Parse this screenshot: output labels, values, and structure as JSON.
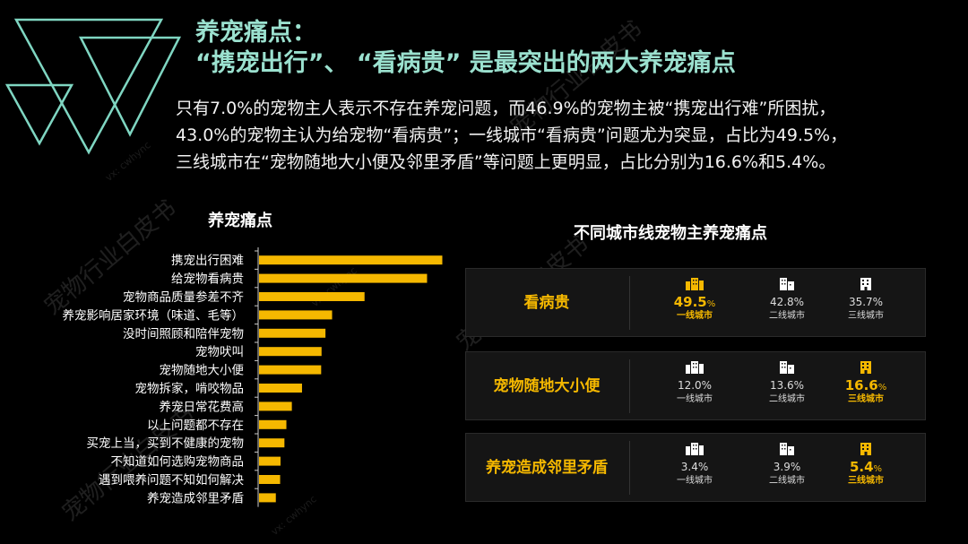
{
  "title": {
    "line1": "养宠痛点：",
    "line2": "“携宠出行”、 “看病贵” 是最突出的两大养宠痛点"
  },
  "intro": [
    "只有7.0%的宠物主人表示不存在养宠问题，而46.9%的宠物主被“携宠出行难”所困扰，",
    "43.0%的宠物主认为给宠物“看病贵”；一线城市“看病贵”问题尤为突显，占比为49.5%，",
    "三线城市在“宠物随地大小便及邻里矛盾”等问题上更明显，占比分别为16.6%和5.4%。"
  ],
  "watermark": {
    "text": "宠物行业白皮书",
    "sub": "vx: cwhync"
  },
  "colors": {
    "accent": "#f5b800",
    "title": "#9be1cf",
    "logo": "#7fd6c2"
  },
  "chart_data": [
    {
      "type": "bar",
      "orientation": "horizontal",
      "title": "养宠痛点",
      "categories": [
        "携宠出行困难",
        "给宠物看病贵",
        "宠物商品质量参差不齐",
        "养宠影响居家环境（味道、毛等）",
        "没时间照顾和陪伴宠物",
        "宠物吠叫",
        "宠物随地大小便",
        "宠物拆家，啃咬物品",
        "养宠日常花费高",
        "以上问题都不存在",
        "买宠上当，买到不健康的宠物",
        "不知道如何选购宠物商品",
        "遇到喂养问题不知如何解决",
        "养宠造成邻里矛盾"
      ],
      "values": [
        46.9,
        43.0,
        27.0,
        18.7,
        17.0,
        16.0,
        15.9,
        11.0,
        8.4,
        7.0,
        6.5,
        5.5,
        5.4,
        4.3
      ],
      "xlim": [
        0,
        50
      ],
      "legend": "none",
      "grid": false
    },
    {
      "type": "table",
      "title": "不同城市线宠物主养宠痛点",
      "rows": [
        {
          "label_lines": [
            "看病贵"
          ],
          "cells": [
            {
              "value": "49.5",
              "unit": "%",
              "city": "一线城市",
              "highlight": true
            },
            {
              "value": "42.8%",
              "unit": "",
              "city": "二线城市",
              "highlight": false
            },
            {
              "value": "35.7%",
              "unit": "",
              "city": "三线城市",
              "highlight": false
            }
          ]
        },
        {
          "label_lines": [
            "宠物",
            "随地大小便"
          ],
          "cells": [
            {
              "value": "12.0%",
              "unit": "",
              "city": "一线城市",
              "highlight": false
            },
            {
              "value": "13.6%",
              "unit": "",
              "city": "二线城市",
              "highlight": false
            },
            {
              "value": "16.6",
              "unit": "%",
              "city": "三线城市",
              "highlight": true
            }
          ]
        },
        {
          "label_lines": [
            "养宠造成",
            "邻里矛盾"
          ],
          "cells": [
            {
              "value": "3.4%",
              "unit": "",
              "city": "一线城市",
              "highlight": false
            },
            {
              "value": "3.9%",
              "unit": "",
              "city": "二线城市",
              "highlight": false
            },
            {
              "value": "5.4",
              "unit": "%",
              "city": "三线城市",
              "highlight": true
            }
          ]
        }
      ]
    }
  ]
}
